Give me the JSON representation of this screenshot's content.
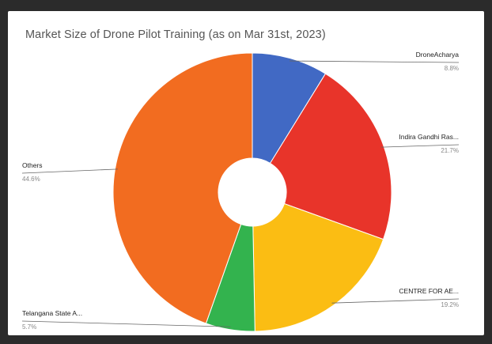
{
  "chart_data": {
    "type": "pie",
    "title": "Market Size of Drone Pilot Training (as on Mar 31st, 2023)",
    "slices": [
      {
        "label": "DroneAcharya",
        "value": 8.8,
        "value_text": "8.8%",
        "color": "#4169c4"
      },
      {
        "label": "Indira Gandhi Ras...",
        "value": 21.7,
        "value_text": "21.7%",
        "color": "#e8342a"
      },
      {
        "label": "CENTRE FOR AE...",
        "value": 19.2,
        "value_text": "19.2%",
        "color": "#fbbd13"
      },
      {
        "label": "Telangana State A...",
        "value": 5.7,
        "value_text": "5.7%",
        "color": "#33b34e"
      },
      {
        "label": "Others",
        "value": 44.6,
        "value_text": "44.6%",
        "color": "#f26c20"
      }
    ],
    "donut": true,
    "start_angle": "top",
    "direction": "clockwise",
    "label_placement": "outside-with-leader-lines"
  }
}
